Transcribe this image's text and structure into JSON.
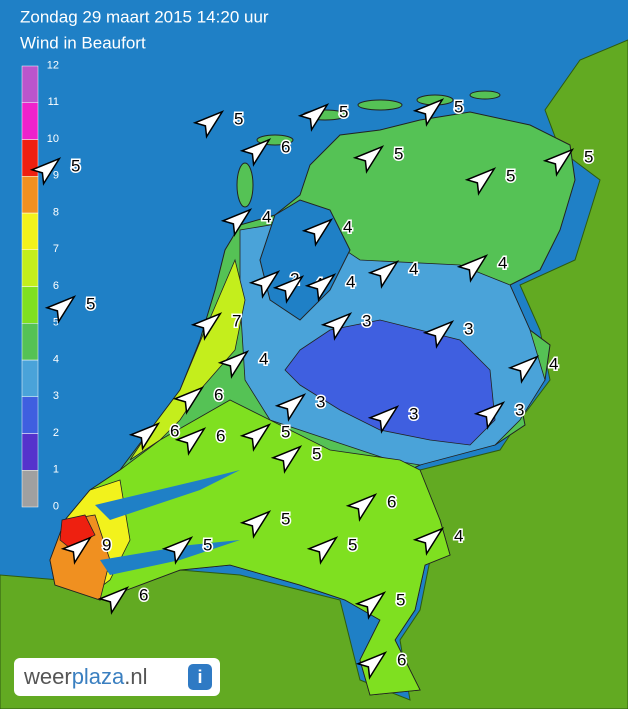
{
  "header": {
    "title": "Zondag 29 maart 2015 14:20 uur",
    "subtitle": "Wind in Beaufort"
  },
  "legend": {
    "ticks": [
      0,
      1,
      2,
      3,
      4,
      5,
      6,
      7,
      8,
      9,
      10,
      11,
      12
    ],
    "colors": [
      "#a0a0a0",
      "#5533cc",
      "#3f5fe0",
      "#4aa3d9",
      "#55c255",
      "#7fe020",
      "#c4ee1c",
      "#f2f21c",
      "#f09020",
      "#ee2010",
      "#ee22cc",
      "#bb55cc"
    ]
  },
  "stations": [
    {
      "value": 5
    },
    {
      "value": 5
    },
    {
      "value": 5
    },
    {
      "value": 6
    },
    {
      "value": 5
    },
    {
      "value": 5
    },
    {
      "value": 5
    },
    {
      "value": 5
    },
    {
      "value": 4
    },
    {
      "value": 4
    },
    {
      "value": 4
    },
    {
      "value": 4
    },
    {
      "value": 5
    },
    {
      "value": 7
    },
    {
      "value": 2
    },
    {
      "value": 4
    },
    {
      "value": 4
    },
    {
      "value": 3
    },
    {
      "value": 3
    },
    {
      "value": 4
    },
    {
      "value": 4
    },
    {
      "value": 6
    },
    {
      "value": 3
    },
    {
      "value": 3
    },
    {
      "value": 3
    },
    {
      "value": 6
    },
    {
      "value": 6
    },
    {
      "value": 5
    },
    {
      "value": 5
    },
    {
      "value": 6
    },
    {
      "value": 4
    },
    {
      "value": 5
    },
    {
      "value": 9
    },
    {
      "value": 5
    },
    {
      "value": 5
    },
    {
      "value": 6
    },
    {
      "value": 5
    },
    {
      "value": 6
    }
  ],
  "logo": {
    "part1": "weer",
    "part2": "plaza",
    "part3": ".nl",
    "icon": "i"
  }
}
